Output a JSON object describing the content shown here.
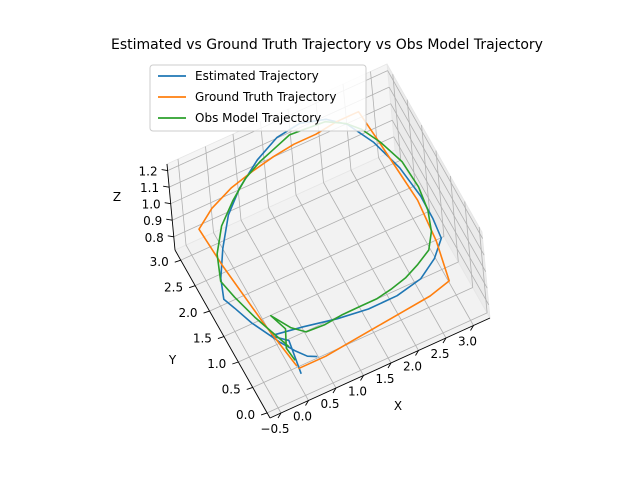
{
  "chart_data": {
    "type": "line",
    "projection": "3d",
    "title": "Estimated vs Ground Truth Trajectory vs Obs Model Trajectory",
    "xlabel": "X",
    "ylabel": "Y",
    "zlabel": "Z",
    "xlim": [
      -0.7,
      3.3
    ],
    "ylim": [
      -0.1,
      3.2
    ],
    "zlim": [
      0.72,
      1.24
    ],
    "xticks": [
      "−0.5",
      "0.0",
      "0.5",
      "1.0",
      "1.5",
      "2.0",
      "2.5",
      "3.0"
    ],
    "xtick_values": [
      -0.5,
      0.0,
      0.5,
      1.0,
      1.5,
      2.0,
      2.5,
      3.0
    ],
    "yticks": [
      "0.0",
      "0.5",
      "1.0",
      "1.5",
      "2.0",
      "2.5",
      "3.0"
    ],
    "ytick_values": [
      0.0,
      0.5,
      1.0,
      1.5,
      2.0,
      2.5,
      3.0
    ],
    "zticks": [
      "0.8",
      "0.9",
      "1.0",
      "1.1",
      "1.2"
    ],
    "ztick_values": [
      0.8,
      0.9,
      1.0,
      1.1,
      1.2
    ],
    "grid": true,
    "legend_position": "top-left",
    "series": [
      {
        "name": "Estimated Trajectory",
        "color": "#1f77b4",
        "x": [
          0.0,
          0.05,
          -0.2,
          0.3,
          0.8,
          1.3,
          1.8,
          2.3,
          2.7,
          3.0,
          3.05,
          3.0,
          2.85,
          2.6,
          2.3,
          2.0,
          1.6,
          1.2,
          0.8,
          0.4,
          0.1,
          -0.2,
          -0.45,
          -0.6,
          -0.55,
          -0.4,
          -0.25,
          -0.1,
          0.05,
          0.2,
          0.35
        ],
        "y": [
          0.1,
          0.6,
          0.75,
          0.55,
          0.3,
          0.15,
          0.1,
          0.25,
          0.55,
          0.9,
          1.3,
          1.6,
          2.0,
          2.4,
          2.7,
          2.85,
          3.0,
          3.05,
          3.0,
          2.9,
          2.75,
          2.4,
          2.0,
          1.6,
          1.3,
          1.0,
          0.8,
          0.6,
          0.4,
          0.25,
          0.2
        ],
        "z": [
          0.82,
          0.86,
          0.88,
          0.92,
          0.97,
          1.0,
          1.02,
          1.0,
          0.97,
          0.94,
          0.93,
          0.98,
          1.05,
          1.12,
          1.18,
          1.21,
          1.2,
          1.16,
          1.1,
          1.02,
          0.95,
          0.9,
          0.88,
          0.9,
          0.93,
          0.91,
          0.89,
          0.87,
          0.86,
          0.85,
          0.84
        ]
      },
      {
        "name": "Ground Truth Trajectory",
        "color": "#ff7f0e",
        "x": [
          0.0,
          0.5,
          1.0,
          1.5,
          2.0,
          2.5,
          2.9,
          2.95,
          2.9,
          2.8,
          2.7,
          2.6,
          2.2,
          1.8,
          1.4,
          1.0,
          0.6,
          0.2,
          -0.2,
          -0.5,
          -0.4,
          -0.2,
          0.0
        ],
        "y": [
          0.2,
          0.2,
          0.25,
          0.3,
          0.35,
          0.4,
          0.5,
          1.0,
          1.5,
          2.0,
          2.5,
          2.9,
          2.9,
          2.85,
          2.85,
          2.8,
          2.8,
          2.75,
          2.7,
          2.6,
          2.0,
          1.0,
          0.25
        ],
        "z": [
          0.82,
          0.82,
          0.82,
          0.82,
          0.82,
          0.82,
          0.82,
          0.9,
          1.0,
          1.05,
          1.1,
          1.15,
          1.15,
          1.15,
          1.15,
          1.15,
          1.12,
          1.1,
          1.05,
          1.0,
          0.95,
          0.88,
          0.82
        ]
      },
      {
        "name": "Obs Model Trajectory",
        "color": "#2ca02c",
        "x": [
          0.0,
          -0.05,
          0.05,
          -0.1,
          0.1,
          0.3,
          0.6,
          0.9,
          1.2,
          1.5,
          1.8,
          2.1,
          2.4,
          2.7,
          2.9,
          3.0,
          3.0,
          2.9,
          2.7,
          2.5,
          2.3,
          2.0,
          1.7,
          1.4,
          1.1,
          0.8,
          0.5,
          0.2,
          -0.1,
          -0.35,
          -0.5,
          -0.45,
          -0.3,
          -0.15,
          0.0
        ],
        "y": [
          0.3,
          0.5,
          0.7,
          0.9,
          0.6,
          0.45,
          0.35,
          0.3,
          0.25,
          0.25,
          0.3,
          0.4,
          0.55,
          0.75,
          1.05,
          1.35,
          1.65,
          2.0,
          2.35,
          2.6,
          2.75,
          2.9,
          2.95,
          3.0,
          2.95,
          2.9,
          2.85,
          2.75,
          2.6,
          2.3,
          1.9,
          1.5,
          1.1,
          0.8,
          0.5
        ],
        "z": [
          0.84,
          0.86,
          0.9,
          0.94,
          0.93,
          0.92,
          0.95,
          0.98,
          1.0,
          1.0,
          1.0,
          0.99,
          0.98,
          0.96,
          0.95,
          0.97,
          1.02,
          1.08,
          1.12,
          1.15,
          1.17,
          1.18,
          1.17,
          1.16,
          1.14,
          1.12,
          1.08,
          1.02,
          0.96,
          0.92,
          0.9,
          0.92,
          0.9,
          0.88,
          0.86
        ]
      }
    ]
  }
}
